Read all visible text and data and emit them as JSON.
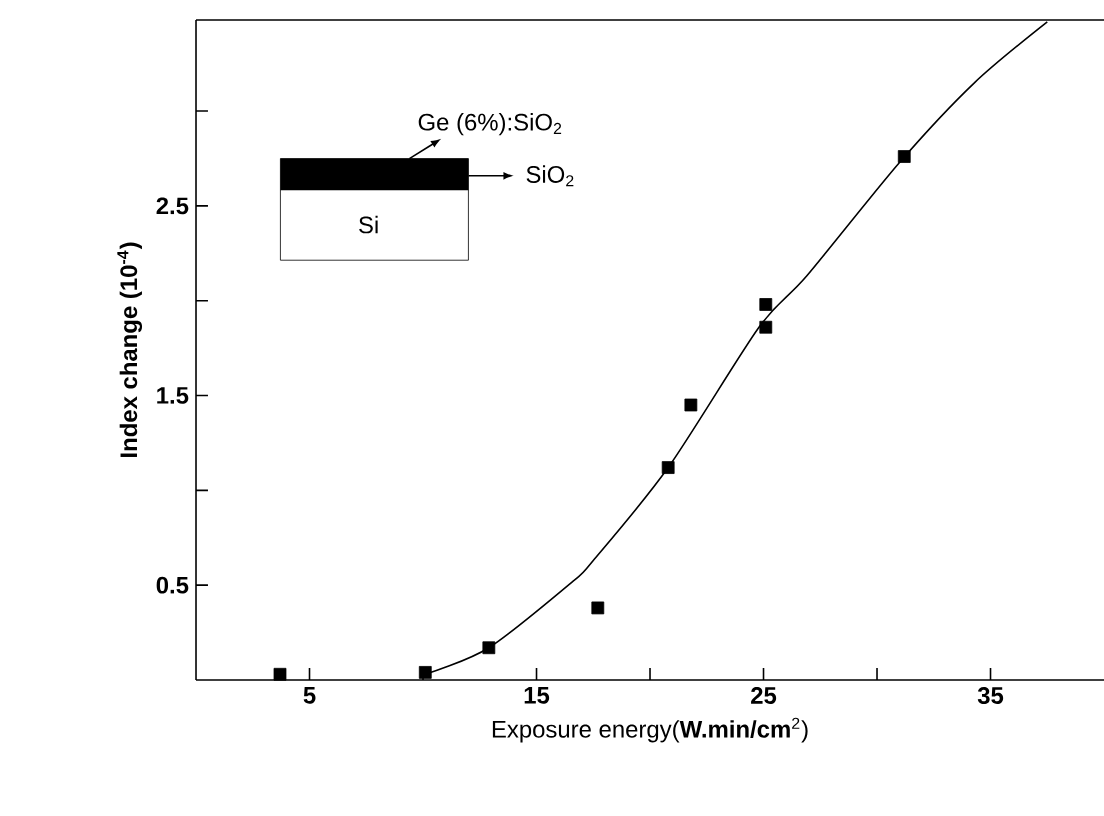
{
  "chart_data": {
    "type": "scatter",
    "xlabel": "Exposure energy(**W.min/cm**$^{2}$)",
    "ylabel": "Index change (10$^{-4}$)",
    "xlim": [
      0,
      40
    ],
    "ylim": [
      0,
      3.48
    ],
    "xticks": [
      5,
      {
        "value": 10,
        "label": null
      },
      15,
      {
        "value": 20,
        "label": null
      },
      25,
      {
        "value": 30,
        "label": null
      },
      35
    ],
    "yticks": [
      0.5,
      {
        "value": 1,
        "label": null
      },
      1.5,
      {
        "value": 2,
        "label": null
      },
      2.5,
      {
        "value": 3,
        "label": null
      }
    ],
    "series": [
      {
        "color": "#000000",
        "marker": "square",
        "x": [
          3.7,
          10.1,
          12.9,
          17.7,
          20.8,
          21.8,
          25.1,
          25.1,
          31.2
        ],
        "values": [
          0.03,
          0.04,
          0.17,
          0.38,
          1.12,
          1.45,
          1.86,
          1.98,
          2.76
        ]
      },
      {
        "type": "line",
        "color": "#000000",
        "line_style": "solid",
        "x": [
          10.1,
          12.9,
          16.6,
          17.5,
          20.8,
          24.8,
          26.9,
          31.0,
          34.3,
          37.5
        ],
        "values": [
          0.03,
          0.17,
          0.52,
          0.63,
          1.12,
          1.86,
          2.13,
          2.73,
          3.15,
          3.47
        ]
      }
    ],
    "annotations": [
      "Ge (6%):SiO$_{2}$",
      "SiO$_{2}$",
      "Si"
    ],
    "grid": false
  }
}
